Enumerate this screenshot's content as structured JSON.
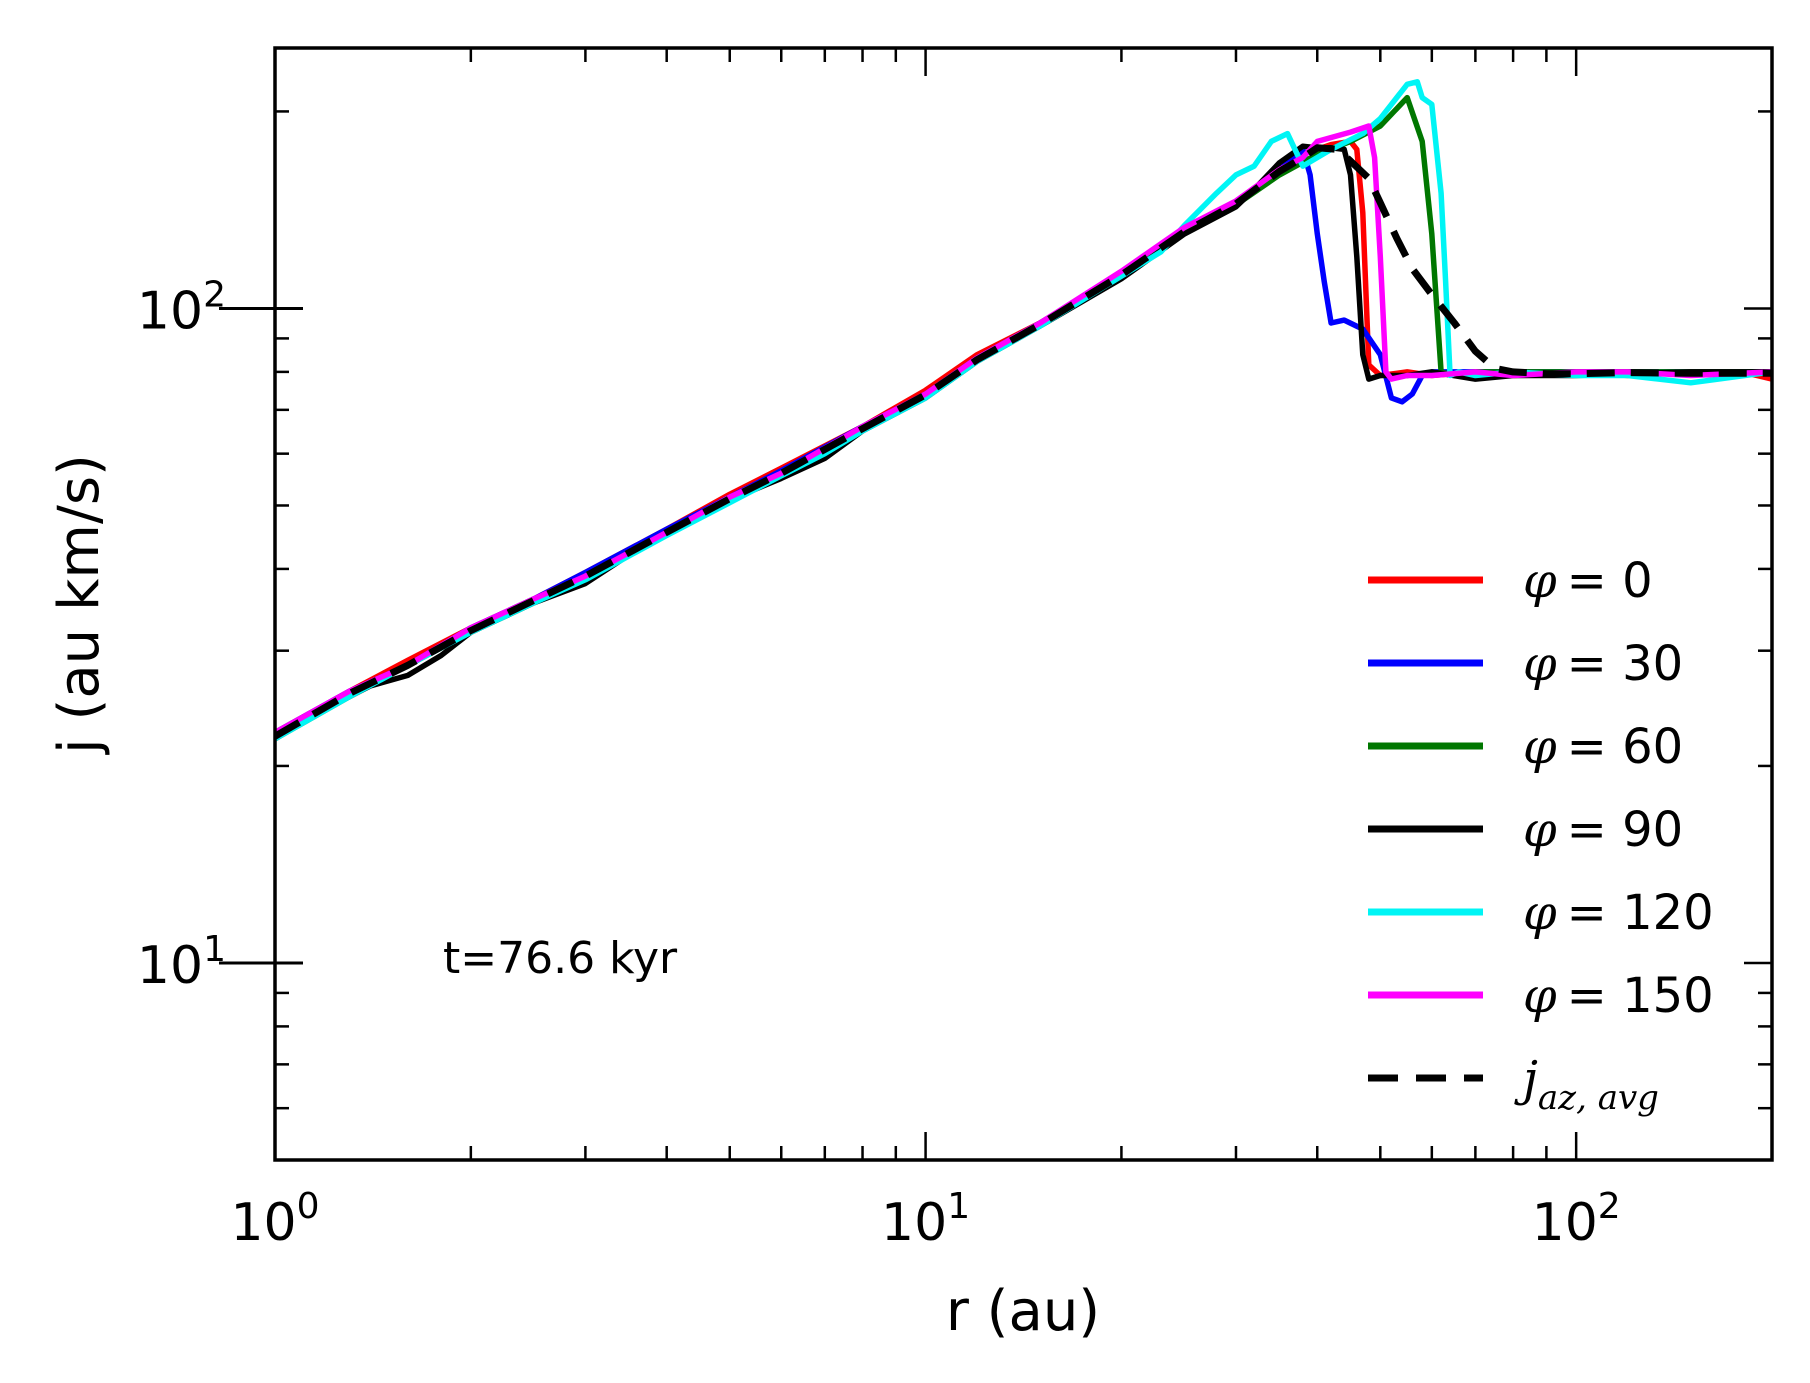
{
  "chart_data": {
    "type": "line",
    "title": "",
    "xlabel": "r (au)",
    "ylabel": "j (au km/s)",
    "xscale": "log",
    "yscale": "log",
    "xlim": [
      1,
      200
    ],
    "ylim": [
      5,
      250
    ],
    "x_major_ticks": [
      {
        "value": 1,
        "base": "10",
        "exp": "0"
      },
      {
        "value": 10,
        "base": "10",
        "exp": "1"
      },
      {
        "value": 100,
        "base": "10",
        "exp": "2"
      }
    ],
    "y_major_ticks": [
      {
        "value": 10,
        "base": "10",
        "exp": "1"
      },
      {
        "value": 100,
        "base": "10",
        "exp": "2"
      }
    ],
    "annotation": "t=76.6 kyr",
    "legend_position": "lower-right",
    "series": [
      {
        "name": "φ = 0",
        "label_var": "φ",
        "label_val": "= 0",
        "color": "#ff0000",
        "dash": "solid",
        "x": [
          1,
          1.3,
          1.6,
          2,
          2.5,
          3,
          4,
          5,
          6,
          8,
          10,
          12,
          15,
          20,
          25,
          30,
          35,
          38,
          42,
          45,
          46,
          47,
          48,
          50,
          55,
          60,
          70,
          80,
          100,
          120,
          150,
          180,
          200
        ],
        "y": [
          22.5,
          26,
          29,
          32.5,
          36,
          39.5,
          46,
          52,
          57,
          66,
          75,
          85,
          95,
          113,
          132,
          145,
          163,
          172,
          178,
          180,
          175,
          140,
          82,
          79,
          80,
          79,
          80,
          79,
          80,
          79,
          80,
          80,
          78
        ]
      },
      {
        "name": "φ = 30",
        "label_var": "φ",
        "label_val": "= 30",
        "color": "#0000ff",
        "dash": "solid",
        "x": [
          1,
          1.3,
          1.6,
          2,
          2.5,
          3,
          4,
          5,
          6,
          8,
          10,
          12,
          15,
          20,
          25,
          30,
          35,
          37,
          38,
          39,
          40,
          41,
          42,
          44,
          47,
          50,
          52,
          54,
          56,
          58,
          60,
          70,
          80,
          100,
          150,
          200
        ],
        "y": [
          22.5,
          26,
          28.5,
          32.5,
          36,
          39.5,
          46,
          51.5,
          56.5,
          66,
          74,
          84,
          95,
          113,
          132,
          145,
          163,
          170,
          175,
          160,
          130,
          110,
          95,
          96,
          93,
          85,
          73,
          72,
          74,
          79,
          80,
          80,
          80,
          80,
          80,
          80
        ]
      },
      {
        "name": "φ = 60",
        "label_var": "φ",
        "label_val": "= 60",
        "color": "#007700",
        "dash": "solid",
        "x": [
          1,
          1.3,
          1.6,
          2,
          2.5,
          3,
          4,
          5,
          6,
          8,
          10,
          12,
          15,
          20,
          25,
          30,
          35,
          40,
          45,
          50,
          55,
          58,
          60,
          62,
          65,
          70,
          80,
          100,
          150,
          200
        ],
        "y": [
          22,
          25.5,
          28.5,
          32,
          35.5,
          39,
          45.5,
          51,
          56,
          65.5,
          74,
          84,
          95,
          113,
          131,
          144,
          160,
          172,
          180,
          190,
          210,
          180,
          130,
          80,
          79,
          80,
          80,
          80,
          80,
          80
        ]
      },
      {
        "name": "φ = 90",
        "label_var": "φ",
        "label_val": "= 90",
        "color": "#000000",
        "dash": "solid",
        "x": [
          1,
          1.2,
          1.4,
          1.6,
          1.8,
          2,
          2.5,
          3,
          3.5,
          4,
          5,
          6,
          7,
          8,
          10,
          12,
          15,
          20,
          25,
          30,
          32,
          35,
          38,
          40,
          42,
          44,
          45,
          46,
          47,
          48,
          50,
          55,
          60,
          70,
          80,
          100,
          150,
          200
        ],
        "y": [
          22,
          24.5,
          26.5,
          27.5,
          29.5,
          32,
          35.5,
          38,
          42,
          45.5,
          51,
          55,
          59,
          65,
          73,
          83,
          94,
          111,
          130,
          143,
          152,
          167,
          177,
          176,
          176,
          175,
          160,
          120,
          85,
          78,
          79,
          79,
          80,
          78,
          79,
          79,
          80,
          80
        ]
      },
      {
        "name": "φ = 120",
        "label_var": "φ",
        "label_val": "= 120",
        "color": "#00f5f5",
        "dash": "solid",
        "x": [
          1,
          1.3,
          1.6,
          2,
          2.5,
          3,
          4,
          5,
          6,
          7,
          8,
          10,
          12,
          15,
          20,
          23,
          25,
          28,
          30,
          32,
          34,
          36,
          38,
          42,
          47,
          50,
          52,
          55,
          57,
          58,
          60,
          62,
          63,
          64,
          66,
          70,
          80,
          100,
          120,
          150,
          200
        ],
        "y": [
          22,
          25.5,
          28.5,
          32,
          35.5,
          38.5,
          45,
          50.5,
          55.5,
          60,
          65,
          73,
          83,
          94,
          112,
          122,
          134,
          150,
          160,
          165,
          180,
          185,
          165,
          175,
          185,
          195,
          205,
          220,
          222,
          210,
          205,
          150,
          110,
          79,
          80,
          79,
          80,
          79,
          79,
          77,
          80
        ]
      },
      {
        "name": "φ = 150",
        "label_var": "φ",
        "label_val": "= 150",
        "color": "#ff00ff",
        "dash": "solid",
        "x": [
          1,
          1.3,
          1.6,
          2,
          2.5,
          3,
          4,
          5,
          6,
          8,
          10,
          12,
          15,
          20,
          25,
          30,
          35,
          38,
          40,
          45,
          48,
          49,
          50,
          51,
          52,
          55,
          60,
          70,
          80,
          100,
          120,
          150,
          200
        ],
        "y": [
          22.5,
          26,
          28.5,
          32.5,
          36,
          39,
          45.5,
          51.5,
          56,
          66,
          74,
          84,
          95,
          114,
          133,
          146,
          163,
          170,
          180,
          186,
          190,
          170,
          120,
          80,
          78,
          79,
          79,
          80,
          79,
          80,
          80,
          79,
          80
        ]
      },
      {
        "name": "j_az,avg",
        "label_var": "j",
        "label_sub": "az, avg",
        "color": "#000000",
        "dash": "dashed",
        "x": [
          1,
          1.3,
          1.6,
          2,
          2.5,
          3,
          4,
          5,
          6,
          8,
          10,
          12,
          15,
          20,
          25,
          30,
          35,
          38,
          40,
          43,
          45,
          48,
          50,
          53,
          56,
          60,
          65,
          70,
          75,
          80,
          90,
          100,
          120,
          150,
          200
        ],
        "y": [
          22.2,
          25.8,
          28.5,
          32.2,
          35.8,
          39,
          45.5,
          51.2,
          56,
          65.5,
          73.8,
          83.5,
          94.5,
          112.5,
          131,
          144.5,
          162,
          170,
          176,
          175,
          168,
          158,
          145,
          128,
          115,
          105,
          95,
          86,
          81,
          80,
          79.5,
          79.5,
          79.8,
          79.6,
          79.6
        ]
      }
    ]
  }
}
